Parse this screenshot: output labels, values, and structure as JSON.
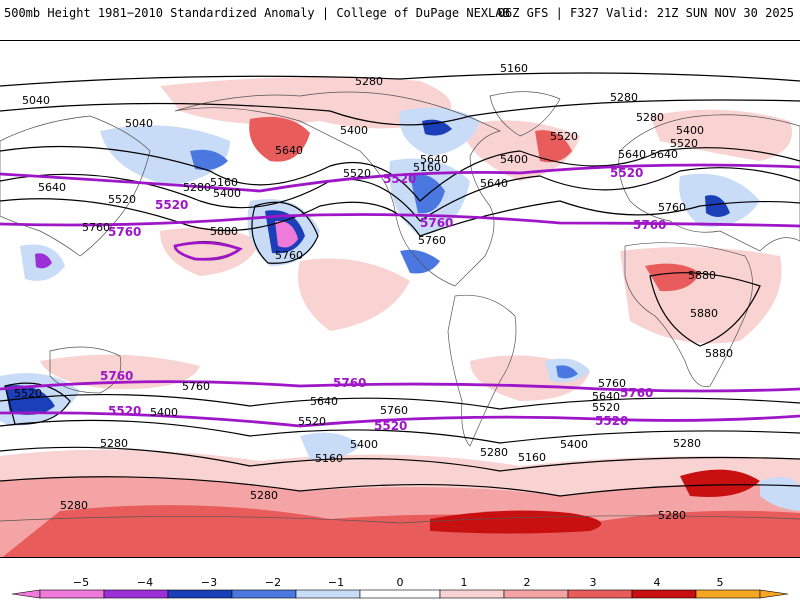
{
  "header": {
    "title_left": "500mb Height 1981−2010 Standardized Anomaly | College of DuPage NEXLAB",
    "title_right": "06Z GFS | F327 Valid: 21Z SUN NOV 30 2025"
  },
  "colors": {
    "neg5": "#f07ad9",
    "neg4": "#9b30d9",
    "neg3": "#1a3fb8",
    "neg2": "#4a78e0",
    "neg1": "#c8dcf7",
    "pos1": "#f9d2d2",
    "pos2": "#f4a4a4",
    "pos3": "#e85c5c",
    "pos4": "#c81010",
    "pos5": "#f5a623",
    "contour_black": "#000000",
    "contour_purple": "#9e16c8",
    "coast": "#555555"
  },
  "map": {
    "contour_labels": [
      {
        "text": "5160"
      },
      {
        "text": "5280"
      },
      {
        "text": "5040"
      },
      {
        "text": "5040"
      },
      {
        "text": "5280"
      },
      {
        "text": "5400"
      },
      {
        "text": "5640"
      },
      {
        "text": "5160"
      },
      {
        "text": "5280"
      },
      {
        "text": "5400"
      },
      {
        "text": "5520"
      },
      {
        "text": "5520"
      },
      {
        "text": "5640"
      },
      {
        "text": "5640"
      },
      {
        "text": "5400"
      },
      {
        "text": "5520"
      },
      {
        "text": "5640"
      },
      {
        "text": "5400"
      },
      {
        "text": "5520"
      },
      {
        "text": "5640"
      },
      {
        "text": "5880"
      },
      {
        "text": "5760"
      },
      {
        "text": "5760"
      },
      {
        "text": "5760"
      },
      {
        "text": "5760"
      },
      {
        "text": "5880"
      },
      {
        "text": "5880"
      },
      {
        "text": "5880"
      },
      {
        "text": "5760"
      },
      {
        "text": "5400"
      },
      {
        "text": "5640"
      },
      {
        "text": "5760"
      },
      {
        "text": "5520"
      },
      {
        "text": "5400"
      },
      {
        "text": "5280"
      },
      {
        "text": "5160"
      },
      {
        "text": "5280"
      },
      {
        "text": "5280"
      },
      {
        "text": "5760"
      },
      {
        "text": "5640"
      },
      {
        "text": "5520"
      },
      {
        "text": "5400"
      },
      {
        "text": "5280"
      },
      {
        "text": "5160"
      },
      {
        "text": "5280"
      },
      {
        "text": "5280"
      },
      {
        "text": "5520"
      },
      {
        "text": "5280"
      },
      {
        "text": "5160"
      },
      {
        "text": "5640"
      }
    ],
    "purple_labels": [
      {
        "text": "5520"
      },
      {
        "text": "5520"
      },
      {
        "text": "5520"
      },
      {
        "text": "5760"
      },
      {
        "text": "5760"
      },
      {
        "text": "5760"
      },
      {
        "text": "5760"
      },
      {
        "text": "5760"
      },
      {
        "text": "5760"
      },
      {
        "text": "5520"
      },
      {
        "text": "5520"
      },
      {
        "text": "5520"
      }
    ]
  },
  "colorbar": {
    "labels": [
      "−5",
      "−4",
      "−3",
      "−2",
      "−1",
      "0",
      "1",
      "2",
      "3",
      "4",
      "5"
    ]
  }
}
